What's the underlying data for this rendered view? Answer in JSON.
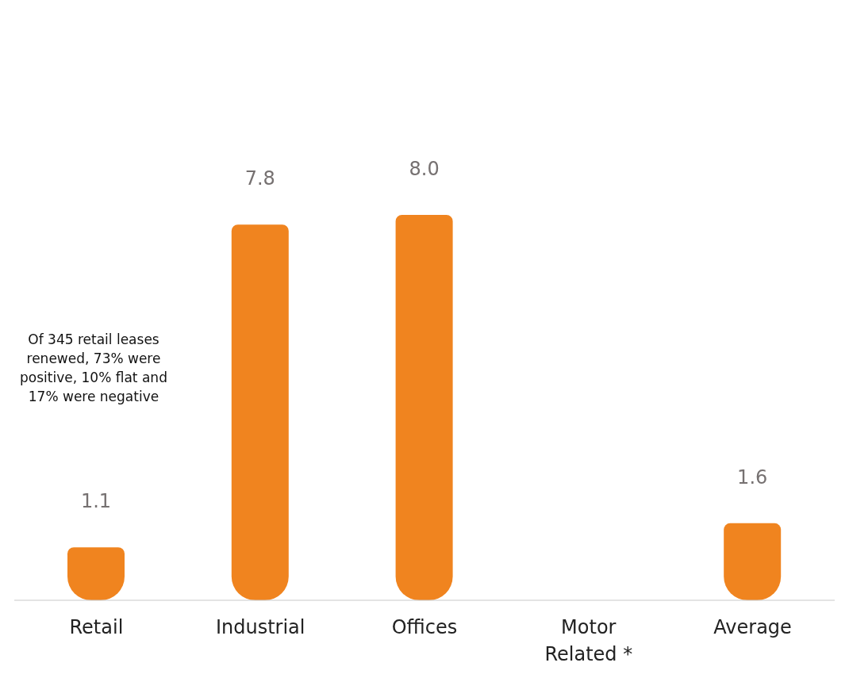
{
  "chart_data": {
    "type": "bar",
    "categories": [
      "Retail",
      "Industrial",
      "Offices",
      "Motor Related *",
      "Average"
    ],
    "values": [
      1.1,
      7.8,
      8.0,
      null,
      1.6
    ],
    "color": "#f0841f",
    "value_labels": [
      "1.1",
      "7.8",
      "8.0",
      null,
      "1.6"
    ],
    "annotations": [
      "Of 345 retail leases renewed, 73% were positive, 10% flat and 17% were negative"
    ]
  }
}
